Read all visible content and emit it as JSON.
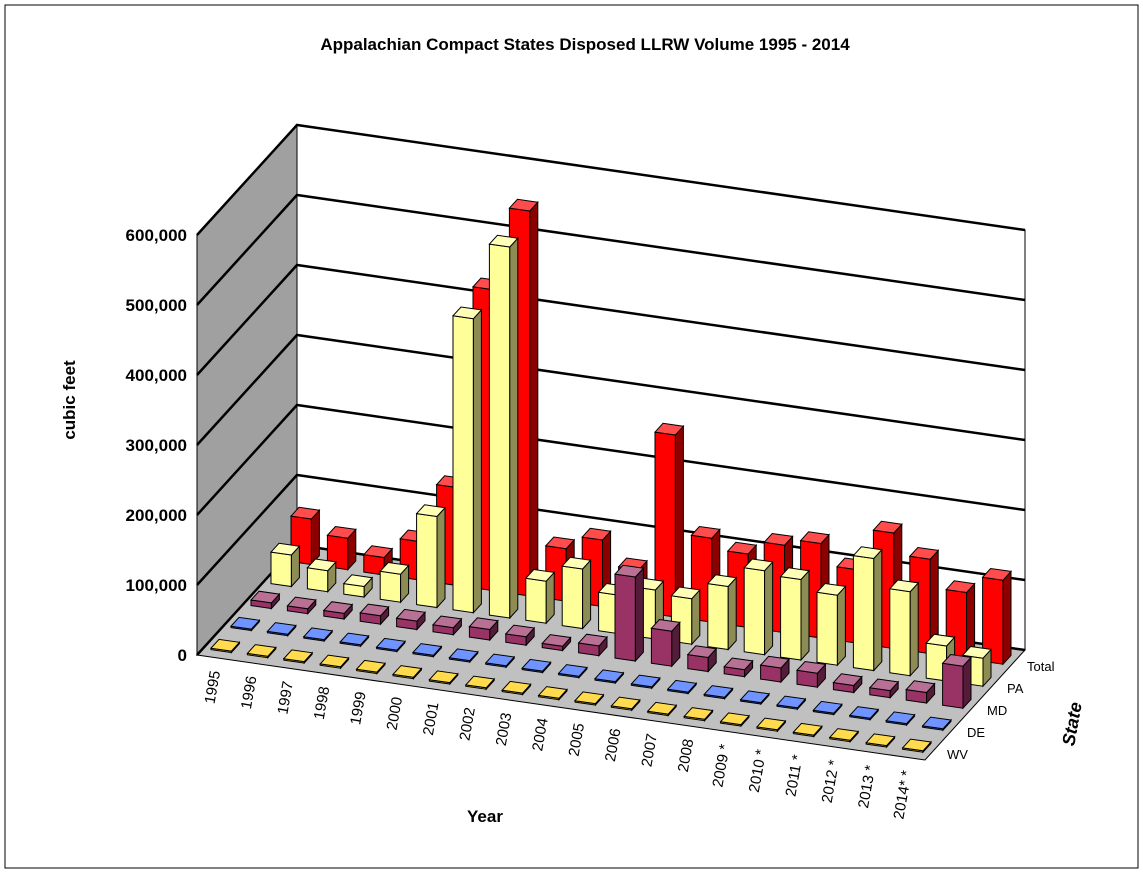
{
  "chart_data": {
    "type": "bar3d",
    "title": "Appalachian Compact States Disposed LLRW Volume 1995 - 2014",
    "x_label": "Year",
    "y_label": "cubic feet",
    "z_label": "State",
    "categories": [
      "1995",
      "1996",
      "1997",
      "1998",
      "1999",
      "2000",
      "2001",
      "2002",
      "2003",
      "2004",
      "2005",
      "2006",
      "2007",
      "2008",
      "2009 *",
      "2010 *",
      "2011 *",
      "2012 *",
      "2013 *",
      "2014* *"
    ],
    "series": [
      {
        "name": "WV",
        "color": "#ffcc00",
        "values": [
          2000,
          2000,
          2000,
          2000,
          2000,
          2000,
          2000,
          2000,
          2000,
          2000,
          2000,
          2000,
          2000,
          2000,
          2000,
          2000,
          2000,
          2000,
          2000,
          2000
        ]
      },
      {
        "name": "DE",
        "color": "#3366ff",
        "values": [
          2000,
          2000,
          2000,
          2000,
          2000,
          2000,
          2000,
          2000,
          2000,
          2000,
          2000,
          2000,
          2000,
          2000,
          2000,
          2000,
          2000,
          2000,
          2000,
          2000
        ]
      },
      {
        "name": "MD",
        "color": "#993366",
        "values": [
          8000,
          7000,
          8000,
          12000,
          12000,
          10000,
          15000,
          12000,
          6000,
          14000,
          120000,
          50000,
          20000,
          10000,
          20000,
          20000,
          10000,
          10000,
          15000,
          60000
        ]
      },
      {
        "name": "PA",
        "color": "#ffff99",
        "values": [
          45000,
          30000,
          15000,
          40000,
          130000,
          420000,
          530000,
          60000,
          85000,
          55000,
          70000,
          65000,
          90000,
          120000,
          115000,
          100000,
          160000,
          120000,
          50000,
          40000
        ]
      },
      {
        "name": "Total",
        "color": "#ff0000",
        "values": [
          65000,
          45000,
          25000,
          55000,
          140000,
          430000,
          550000,
          75000,
          95000,
          60000,
          260000,
          120000,
          105000,
          125000,
          135000,
          105000,
          165000,
          135000,
          95000,
          120000
        ]
      }
    ],
    "ylim": [
      0,
      600000
    ],
    "yticks": [
      {
        "value": 0,
        "label": "0"
      },
      {
        "value": 100000,
        "label": "100,000"
      },
      {
        "value": 200000,
        "label": "200,000"
      },
      {
        "value": 300000,
        "label": "300,000"
      },
      {
        "value": 400000,
        "label": "400,000"
      },
      {
        "value": 500000,
        "label": "500,000"
      },
      {
        "value": 600000,
        "label": "600,000"
      }
    ],
    "grid": true
  }
}
